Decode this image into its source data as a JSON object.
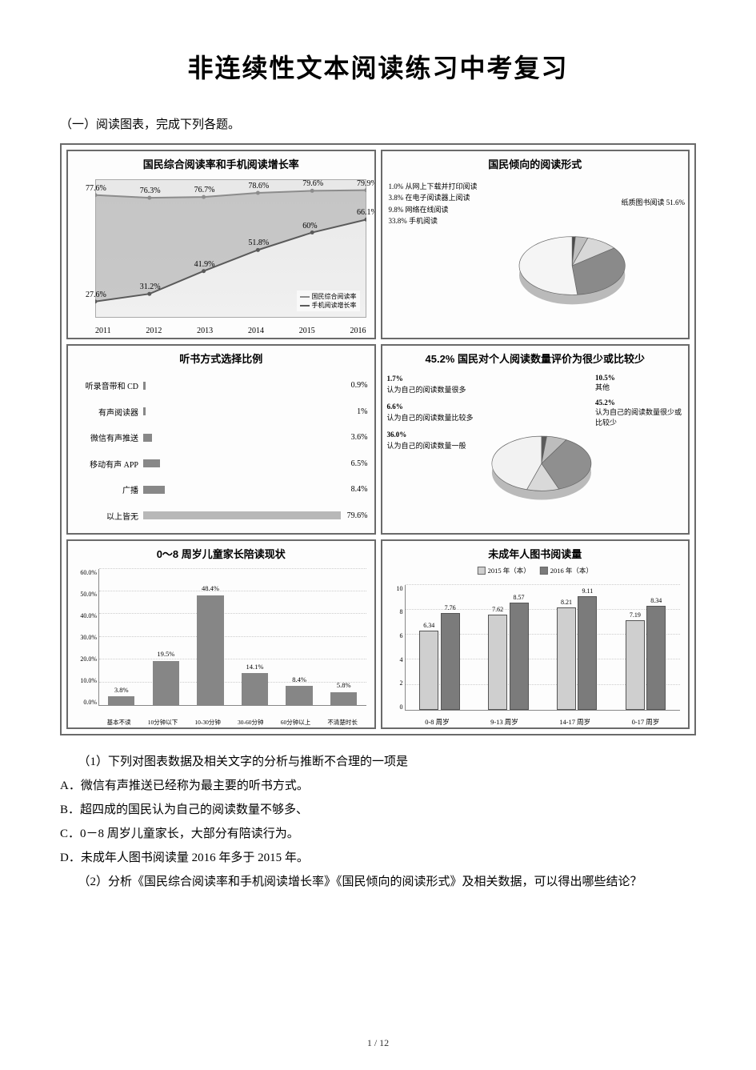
{
  "title": "非连续性文本阅读练习中考复习",
  "section_intro": "（一）阅读图表，完成下列各题。",
  "colors": {
    "border": "#6a6a6a",
    "axis": "#888888",
    "grid": "#cccccc",
    "text": "#000000",
    "bg": "#ffffff"
  },
  "panel1": {
    "title": "国民综合阅读率和手机阅读增长率",
    "years": [
      "2011",
      "2012",
      "2013",
      "2014",
      "2015",
      "2016"
    ],
    "series_top": {
      "label": "国民综合阅读率",
      "color": "#8c8c8c",
      "values": [
        77.6,
        76.3,
        76.7,
        78.6,
        79.6,
        79.9
      ]
    },
    "series_bot": {
      "label": "手机阅读增长率",
      "color": "#5a5a5a",
      "values": [
        27.6,
        31.2,
        41.9,
        51.8,
        60.0,
        66.1
      ]
    },
    "area_gradient_top": "#d6d6d6",
    "area_gradient_bottom": "#a8a8a8"
  },
  "panel2": {
    "title": "国民倾向的阅读形式",
    "slices": [
      {
        "label": "从网上下载并打印阅读",
        "value": 1.0,
        "color": "#4a4a4a"
      },
      {
        "label": "在电子阅读器上阅读",
        "value": 3.8,
        "color": "#bfbfbf"
      },
      {
        "label": "网络在线阅读",
        "value": 9.8,
        "color": "#d8d8d8"
      },
      {
        "label": "手机阅读",
        "value": 33.8,
        "color": "#8a8a8a"
      },
      {
        "label": "纸质图书阅读",
        "value": 51.6,
        "color": "#f5f5f5"
      }
    ],
    "right_label": "纸质图书阅读 51.6%"
  },
  "panel3": {
    "title": "听书方式选择比例",
    "items": [
      {
        "label": "听录音带和 CD",
        "value": 0.9,
        "color": "#888888"
      },
      {
        "label": "有声阅读器",
        "value": 1.0,
        "color": "#888888"
      },
      {
        "label": "微信有声推送",
        "value": 3.6,
        "color": "#888888"
      },
      {
        "label": "移动有声 APP",
        "value": 6.5,
        "color": "#888888"
      },
      {
        "label": "广播",
        "value": 8.4,
        "color": "#888888"
      },
      {
        "label": "以上皆无",
        "value": 79.6,
        "color": "#b8b8b8"
      }
    ],
    "max": 80
  },
  "panel4": {
    "title": "45.2% 国民对个人阅读数量评价为很少或比较少",
    "slices": [
      {
        "label": "认为自己的阅读数量很多",
        "value": 1.7,
        "color": "#5a5a5a"
      },
      {
        "label": "认为自己的阅读数量比较多",
        "value": 6.6,
        "color": "#bdbdbd"
      },
      {
        "label": "认为自己的阅读数量一般",
        "value": 36.0,
        "color": "#8f8f8f"
      },
      {
        "label": "其他",
        "value": 10.5,
        "color": "#d9d9d9"
      },
      {
        "label": "认为自己的阅读数量很少或比较少",
        "value": 45.2,
        "color": "#f2f2f2"
      }
    ],
    "left_items": [
      {
        "pct": "1.7%",
        "txt": "认为自己的阅读数量很多"
      },
      {
        "pct": "6.6%",
        "txt": "认为自己的阅读数量比较多"
      },
      {
        "pct": "36.0%",
        "txt": "认为自己的阅读数量一般"
      }
    ],
    "right_items": [
      {
        "pct": "10.5%",
        "txt": "其他"
      },
      {
        "pct": "45.2%",
        "txt": "认为自己的阅读数量很少或比较少"
      }
    ]
  },
  "panel5": {
    "title": "0～8 周岁儿童家长陪读现状",
    "ymax": 60,
    "ystep": 10,
    "categories": [
      "基本不读",
      "10分钟以下",
      "10-30分钟",
      "30-60分钟",
      "60分钟以上",
      "不清楚时长"
    ],
    "values": [
      3.8,
      19.5,
      48.4,
      14.1,
      8.4,
      5.8
    ],
    "bar_color": "#868686"
  },
  "panel6": {
    "title": "未成年人图书阅读量",
    "legend": [
      {
        "label": "2015 年（本）",
        "color": "#cfcfcf"
      },
      {
        "label": "2016 年（本）",
        "color": "#7b7b7b"
      }
    ],
    "categories": [
      "0-8 周岁",
      "9-13 周岁",
      "14-17 周岁",
      "0-17 周岁"
    ],
    "series": [
      {
        "name": "2015",
        "color": "#cfcfcf",
        "values": [
          6.34,
          7.62,
          8.21,
          7.19
        ]
      },
      {
        "name": "2016",
        "color": "#7b7b7b",
        "values": [
          7.76,
          8.57,
          9.11,
          8.34
        ]
      }
    ],
    "ymax": 10,
    "ystep": 2
  },
  "questions": {
    "q1_stem": "（1）下列对图表数据及相关文字的分析与推断不合理的一项是",
    "opt_a": "A．微信有声推送已经称为最主要的听书方式。",
    "opt_b": "B．超四成的国民认为自己的阅读数量不够多、",
    "opt_c": "C．0－8 周岁儿童家长，大部分有陪读行为。",
    "opt_d": "D．未成年人图书阅读量 2016 年多于 2015 年。",
    "q2": "（2）分析《国民综合阅读率和手机阅读增长率》《国民倾向的阅读形式》及相关数据，可以得出哪些结论？"
  },
  "page_number": "1 / 12"
}
